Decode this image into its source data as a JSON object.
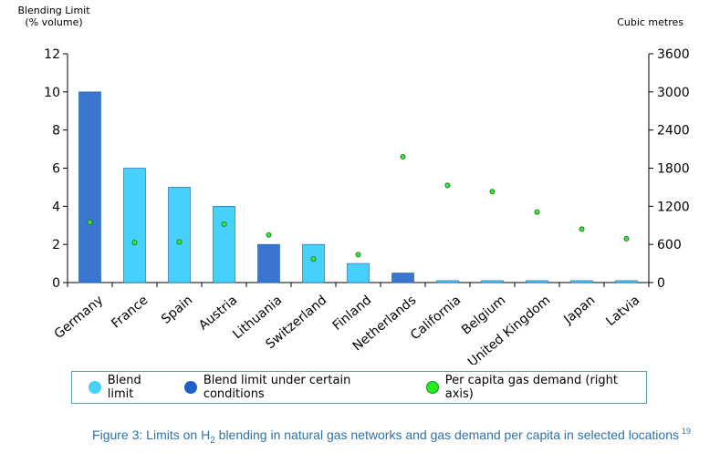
{
  "chart_data": {
    "type": "bar",
    "left_axis_title": [
      "Blending Limit",
      "(% volume)"
    ],
    "right_axis_title": "Cubic metres",
    "ylim_left": [
      0,
      12
    ],
    "yticks_left": [
      0,
      2,
      4,
      6,
      8,
      10,
      12
    ],
    "ylim_right": [
      0,
      3600
    ],
    "yticks_right": [
      0,
      600,
      1200,
      1800,
      2400,
      3000,
      3600
    ],
    "categories": [
      "Germany",
      "France",
      "Spain",
      "Austria",
      "Lithuania",
      "Switzerland",
      "Finland",
      "Netherlands",
      "California",
      "Belgium",
      "United Kingdom",
      "Japan",
      "Latvia"
    ],
    "series": [
      {
        "name": "Blend limit",
        "kind": "bar",
        "color": "#47d1fa",
        "values": [
          0,
          6,
          5,
          4,
          0,
          2,
          1,
          0,
          0.1,
          0.1,
          0.1,
          0.1,
          0.1
        ]
      },
      {
        "name": "Blend limit under certain conditions",
        "kind": "bar",
        "color": "#3a75d0",
        "values": [
          10,
          0,
          0,
          0,
          2,
          0,
          0,
          0.5,
          0,
          0,
          0,
          0,
          0
        ]
      },
      {
        "name": "Per capita gas demand (right axis)",
        "kind": "scatter",
        "axis": "right",
        "color": "#39e639",
        "values": [
          950,
          630,
          640,
          920,
          750,
          370,
          440,
          1980,
          1530,
          1430,
          1110,
          840,
          690
        ]
      }
    ],
    "grid": false,
    "legend_position": "bottom"
  },
  "legend": {
    "item1": "Blend limit",
    "item2": "Blend limit under certain conditions",
    "item3": "Per capita gas demand (right axis)"
  },
  "caption": {
    "prefix": "Figure 3: Limits on H",
    "sub": "2",
    "suffix": " blending in natural gas networks and gas demand per capita in selected locations",
    "footnote": "19"
  }
}
